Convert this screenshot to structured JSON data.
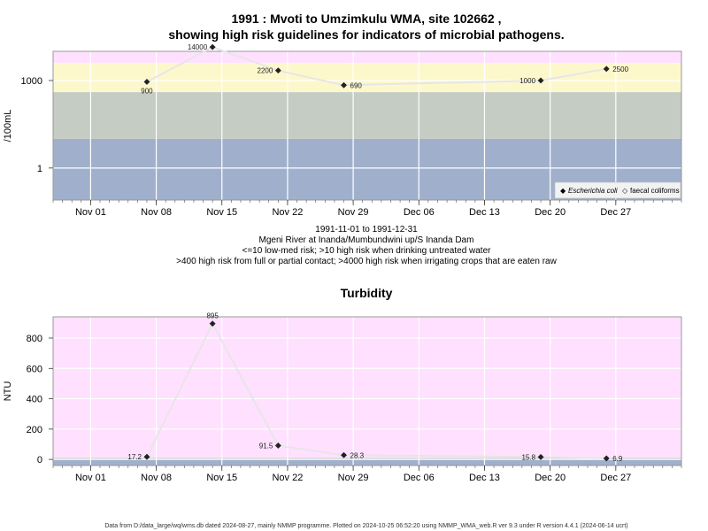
{
  "chart_data": [
    {
      "type": "scatter",
      "title_line1": "1991 : Mvoti to Umzimkulu WMA, site 102662 ,",
      "title_line2": "showing high risk guidelines for indicators of microbial pathogens.",
      "ylabel": "/100mL",
      "yscale": "log",
      "ylim": [
        0.08,
        10000
      ],
      "y_ticks": [
        1,
        1000
      ],
      "y_tick_labels": [
        "1",
        "1000"
      ],
      "x_ticks": [
        "Nov 01",
        "Nov 08",
        "Nov 15",
        "Nov 22",
        "Nov 29",
        "Dec 06",
        "Dec 13",
        "Dec 20",
        "Dec 27"
      ],
      "risk_bands": [
        {
          "from": 0.08,
          "to": 10,
          "color": "#a0b0cc"
        },
        {
          "from": 10,
          "to": 400,
          "color": "#c4ccc4"
        },
        {
          "from": 400,
          "to": 4000,
          "color": "#fdf8cc"
        },
        {
          "from": 4000,
          "to": 10000,
          "color": "#ffe0ff"
        }
      ],
      "series": [
        {
          "name": "Escherichia coli",
          "dates": [
            "1991-11-07",
            "1991-11-14",
            "1991-11-21",
            "1991-11-28",
            "1991-12-19",
            "1991-12-26"
          ],
          "values": [
            900,
            14000,
            2200,
            690,
            1000,
            2500
          ],
          "labels": [
            "900",
            "14000",
            "2200",
            "690",
            "1000",
            "2500"
          ]
        }
      ],
      "legend": {
        "position": "bottom-right",
        "entries": [
          {
            "symbol": "◆",
            "text": "Escherichia coli",
            "italic": true
          },
          {
            "symbol": "◇",
            "text": "faecal coliforms",
            "italic": false
          }
        ]
      },
      "grid": true
    },
    {
      "type": "line",
      "title": "Turbidity",
      "ylabel": "NTU",
      "ylim": [
        -40,
        940
      ],
      "y_ticks": [
        0,
        200,
        400,
        600,
        800
      ],
      "x_ticks": [
        "Nov 01",
        "Nov 08",
        "Nov 15",
        "Nov 22",
        "Nov 29",
        "Dec 06",
        "Dec 13",
        "Dec 20",
        "Dec 27"
      ],
      "risk_bands": [
        {
          "from": -40,
          "to": 0,
          "color": "#a0b0cc"
        },
        {
          "from": 0,
          "to": 10,
          "color": "#c4ccc4"
        },
        {
          "from": 10,
          "to": 940,
          "color": "#ffe0ff"
        }
      ],
      "series": [
        {
          "name": "Turbidity",
          "dates": [
            "1991-11-07",
            "1991-11-14",
            "1991-11-21",
            "1991-11-28",
            "1991-12-19",
            "1991-12-26"
          ],
          "values": [
            17.2,
            895,
            91.5,
            28.3,
            15.8,
            6.9
          ],
          "labels": [
            "17.2",
            "895",
            "91.5",
            "28.3",
            "15.8",
            "6.9"
          ]
        }
      ],
      "grid": true
    }
  ],
  "subtitle_lines": [
    "1991-11-01 to 1991-12-31",
    "Mgeni River at Inanda/Mumbundwini up/S Inanda Dam",
    "<=10 low-med risk; >10 high risk when drinking untreated water",
    ">400 high risk from full or partial contact; >4000 high risk when irrigating crops that are eaten raw"
  ],
  "footer": "Data from D:/data_large/wq/wms.db dated 2024-08-27, mainly NMMP programme. Plotted on 2024-10-25 06:52:20 using NMMP_WMA_web.R ver 9.3 under R version 4.4.1 (2024-06-14 ucrt)"
}
